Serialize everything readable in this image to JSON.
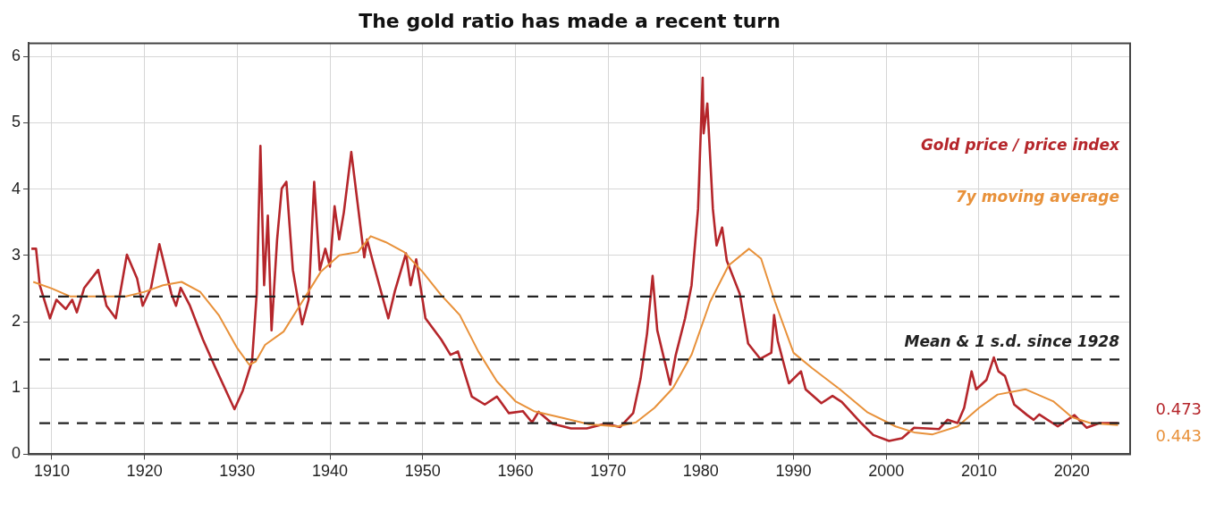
{
  "chart_data": {
    "type": "line",
    "title": "The gold ratio has made a recent turn",
    "xlim": [
      1907.5,
      2026.3
    ],
    "xticks": [
      1910,
      1920,
      1930,
      1940,
      1950,
      1960,
      1970,
      1980,
      1990,
      2000,
      2010,
      2020
    ],
    "ylim": [
      0,
      6.2
    ],
    "yticks": [
      0,
      1,
      2,
      3,
      4,
      5,
      6
    ],
    "grid": true,
    "line_style": "solid",
    "marker": "none",
    "series": [
      {
        "name": "Gold price / price index",
        "color": "#b5262b",
        "x": [
          1907.8,
          1908.3,
          1908.7,
          1909.8,
          1910.5,
          1911.5,
          1912.2,
          1912.7,
          1913.5,
          1915,
          1915.9,
          1916.9,
          1918.1,
          1919.2,
          1919.8,
          1920.7,
          1921.6,
          1922.9,
          1923.4,
          1923.9,
          1924.9,
          1926.3,
          1927.6,
          1929.7,
          1930.6,
          1931.6,
          1932.1,
          1932.5,
          1932.9,
          1933.3,
          1933.7,
          1934.3,
          1934.8,
          1935.3,
          1936,
          1937,
          1937.7,
          1938.3,
          1938.9,
          1939.5,
          1940,
          1940.5,
          1941,
          1941.5,
          1942.3,
          1943.7,
          1944,
          1944.7,
          1946.3,
          1947,
          1948.2,
          1948.7,
          1949.3,
          1950.3,
          1952,
          1953,
          1953.8,
          1955.3,
          1956.7,
          1958,
          1959.3,
          1960.8,
          1961.8,
          1962.5,
          1964,
          1966,
          1967.7,
          1969.7,
          1971.3,
          1972.7,
          1973.5,
          1974.2,
          1974.8,
          1975.3,
          1976.7,
          1977.3,
          1978.3,
          1979,
          1979.7,
          1980.2,
          1980.3,
          1980.7,
          1981.3,
          1981.7,
          1982.3,
          1982.8,
          1984.2,
          1985.1,
          1986.4,
          1987.6,
          1987.9,
          1988.3,
          1989.5,
          1990.8,
          1991.3,
          1993,
          1994.2,
          1995.2,
          1997.3,
          1998.6,
          2000.3,
          2001.7,
          2003,
          2005.7,
          2006.6,
          2007.7,
          2008.4,
          2009.2,
          2009.7,
          2010.8,
          2011.6,
          2012.1,
          2012.8,
          2013.8,
          2015.2,
          2015.9,
          2016.5,
          2018.5,
          2020.3,
          2021.6,
          2023,
          2025
        ],
        "values": [
          3.1,
          3.1,
          2.55,
          2.05,
          2.33,
          2.19,
          2.33,
          2.14,
          2.51,
          2.78,
          2.24,
          2.05,
          3.01,
          2.65,
          2.24,
          2.51,
          3.17,
          2.42,
          2.24,
          2.51,
          2.24,
          1.73,
          1.32,
          0.68,
          0.96,
          1.41,
          2.42,
          4.65,
          2.55,
          3.6,
          1.87,
          3.24,
          4.01,
          4.11,
          2.78,
          1.96,
          2.33,
          4.11,
          2.78,
          3.1,
          2.83,
          3.74,
          3.24,
          3.65,
          4.56,
          2.97,
          3.24,
          2.87,
          2.05,
          2.46,
          3.03,
          2.55,
          2.94,
          2.05,
          1.73,
          1.5,
          1.55,
          0.87,
          0.75,
          0.87,
          0.62,
          0.65,
          0.48,
          0.64,
          0.46,
          0.39,
          0.39,
          0.46,
          0.41,
          0.62,
          1.14,
          1.82,
          2.69,
          1.87,
          1.05,
          1.5,
          2.05,
          2.55,
          3.7,
          5.68,
          4.84,
          5.29,
          3.7,
          3.15,
          3.42,
          2.92,
          2.42,
          1.67,
          1.44,
          1.53,
          2.1,
          1.71,
          1.07,
          1.25,
          0.98,
          0.77,
          0.88,
          0.79,
          0.47,
          0.29,
          0.2,
          0.24,
          0.4,
          0.38,
          0.52,
          0.47,
          0.7,
          1.25,
          0.98,
          1.12,
          1.46,
          1.25,
          1.18,
          0.75,
          0.59,
          0.52,
          0.6,
          0.42,
          0.59,
          0.4,
          0.47,
          0.47
        ]
      },
      {
        "name": "7y moving average",
        "color": "#e8913a",
        "x": [
          1908,
          1910,
          1912,
          1915,
          1918,
          1920,
          1922,
          1924,
          1926,
          1928,
          1930,
          1931.3,
          1932,
          1933,
          1935,
          1937,
          1939,
          1941,
          1943,
          1944.4,
          1946,
          1948,
          1950,
          1952,
          1954,
          1956,
          1958,
          1960,
          1962,
          1965,
          1968,
          1971,
          1973,
          1975,
          1977,
          1979,
          1981,
          1983,
          1985.2,
          1986.5,
          1988,
          1990,
          1992,
          1995,
          1998,
          2001,
          2003,
          2005,
          2007.7,
          2010,
          2012,
          2015,
          2018,
          2020,
          2022,
          2025
        ],
        "values": [
          2.6,
          2.5,
          2.38,
          2.38,
          2.38,
          2.45,
          2.55,
          2.6,
          2.45,
          2.1,
          1.6,
          1.35,
          1.4,
          1.65,
          1.85,
          2.3,
          2.75,
          3.0,
          3.05,
          3.29,
          3.2,
          3.05,
          2.75,
          2.4,
          2.1,
          1.55,
          1.1,
          0.8,
          0.65,
          0.55,
          0.45,
          0.42,
          0.48,
          0.7,
          1.0,
          1.5,
          2.3,
          2.85,
          3.1,
          2.95,
          2.3,
          1.53,
          1.3,
          0.98,
          0.63,
          0.42,
          0.33,
          0.3,
          0.42,
          0.7,
          0.9,
          0.98,
          0.8,
          0.56,
          0.47,
          0.44
        ]
      }
    ],
    "ref_lines": [
      {
        "axis": "y",
        "value": 2.38,
        "color": "#222222",
        "line_style": "dashed"
      },
      {
        "axis": "y",
        "value": 1.43,
        "label": "Mean & 1 s.d. since 1928",
        "color": "#222222",
        "line_style": "dashed"
      },
      {
        "axis": "y",
        "value": 0.47,
        "color": "#222222",
        "line_style": "dashed"
      }
    ],
    "annotations": [
      {
        "text": "0.473",
        "x": 2025,
        "y": 0.473
      },
      {
        "text": "0.443",
        "x": 2025,
        "y": 0.443
      }
    ]
  }
}
